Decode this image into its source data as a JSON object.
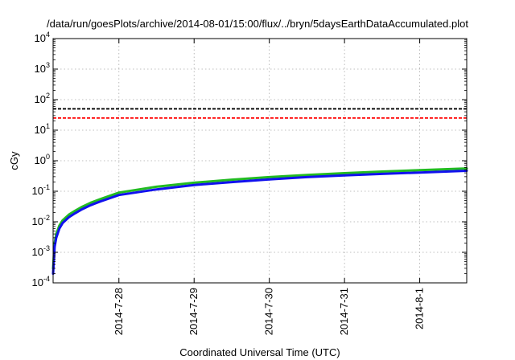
{
  "chart_data": {
    "type": "line",
    "title": "/data/run/goesPlots/archive/2014-08-01/15:00/flux/../bryn/5daysEarthDataAccumulated.plot",
    "xlabel": "Coordinated Universal Time (UTC)",
    "ylabel": "cGy",
    "yscale": "log",
    "ylim": [
      0.0001,
      10000
    ],
    "xlim": [
      "2014-07-27T03:00",
      "2014-08-01T15:00"
    ],
    "grid": true,
    "x_ticks": [
      {
        "value": "2014-07-28T00:00",
        "label": "2014-7-28"
      },
      {
        "value": "2014-07-29T00:00",
        "label": "2014-7-29"
      },
      {
        "value": "2014-07-30T00:00",
        "label": "2014-7-30"
      },
      {
        "value": "2014-07-31T00:00",
        "label": "2014-7-31"
      },
      {
        "value": "2014-08-01T00:00",
        "label": "2014-8-1"
      }
    ],
    "y_ticks": [
      {
        "value": 0.0001,
        "base": "10",
        "exp": "-4"
      },
      {
        "value": 0.001,
        "base": "10",
        "exp": "-3"
      },
      {
        "value": 0.01,
        "base": "10",
        "exp": "-2"
      },
      {
        "value": 0.1,
        "base": "10",
        "exp": "-1"
      },
      {
        "value": 1,
        "base": "10",
        "exp": "0"
      },
      {
        "value": 10,
        "base": "10",
        "exp": "1"
      },
      {
        "value": 100,
        "base": "10",
        "exp": "2"
      },
      {
        "value": 1000,
        "base": "10",
        "exp": "3"
      },
      {
        "value": 10000,
        "base": "10",
        "exp": "4"
      }
    ],
    "thresholds": [
      {
        "value": 50,
        "color": "#000000"
      },
      {
        "value": 25,
        "color": "#ff0000"
      }
    ],
    "series": [
      {
        "color": "#22bb22",
        "x": [
          "2014-07-27T03:00",
          "2014-07-27T03:30",
          "2014-07-27T04:00",
          "2014-07-27T05:00",
          "2014-07-27T06:00",
          "2014-07-27T08:00",
          "2014-07-27T10:00",
          "2014-07-27T12:00",
          "2014-07-27T15:00",
          "2014-07-27T18:00",
          "2014-07-28T00:00",
          "2014-07-28T12:00",
          "2014-07-29T00:00",
          "2014-07-29T12:00",
          "2014-07-30T00:00",
          "2014-07-30T12:00",
          "2014-07-31T00:00",
          "2014-07-31T12:00",
          "2014-08-01T00:00",
          "2014-08-01T15:00"
        ],
        "y": [
          0.0003,
          0.002,
          0.004,
          0.0075,
          0.011,
          0.017,
          0.023,
          0.03,
          0.042,
          0.055,
          0.09,
          0.14,
          0.19,
          0.24,
          0.29,
          0.34,
          0.39,
          0.44,
          0.49,
          0.56
        ]
      },
      {
        "color": "#1111ee",
        "x": [
          "2014-07-27T03:00",
          "2014-07-27T03:30",
          "2014-07-27T04:00",
          "2014-07-27T05:00",
          "2014-07-27T06:00",
          "2014-07-27T08:00",
          "2014-07-27T10:00",
          "2014-07-27T12:00",
          "2014-07-27T15:00",
          "2014-07-27T18:00",
          "2014-07-28T00:00",
          "2014-07-28T12:00",
          "2014-07-29T00:00",
          "2014-07-29T12:00",
          "2014-07-30T00:00",
          "2014-07-30T12:00",
          "2014-07-31T00:00",
          "2014-07-31T12:00",
          "2014-08-01T00:00",
          "2014-08-01T15:00"
        ],
        "y": [
          0.0002,
          0.0015,
          0.003,
          0.006,
          0.009,
          0.014,
          0.019,
          0.025,
          0.035,
          0.046,
          0.075,
          0.115,
          0.16,
          0.2,
          0.245,
          0.29,
          0.33,
          0.37,
          0.41,
          0.47
        ]
      }
    ]
  }
}
